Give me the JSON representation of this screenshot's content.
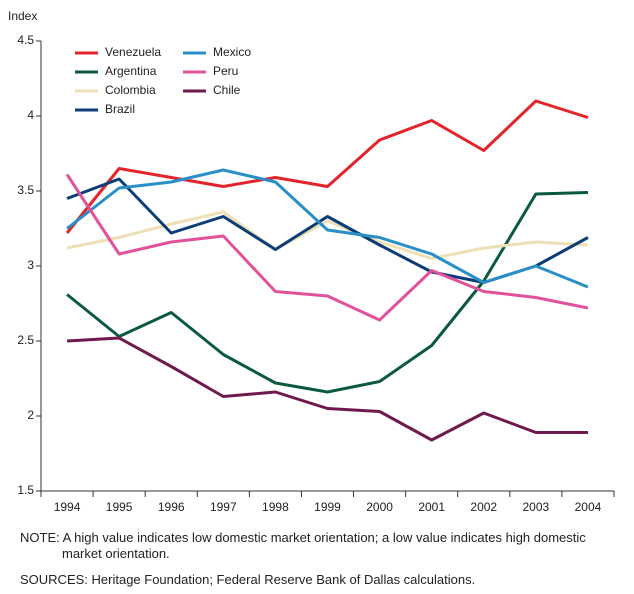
{
  "chart_data": {
    "type": "line",
    "y_label": "Index",
    "categories": [
      "1994",
      "1995",
      "1996",
      "1997",
      "1998",
      "1999",
      "2000",
      "2001",
      "2002",
      "2003",
      "2004"
    ],
    "series": [
      {
        "name": "Venezuela",
        "color": "#e3242b",
        "values": [
          3.22,
          3.65,
          3.59,
          3.53,
          3.59,
          3.53,
          3.84,
          3.97,
          3.77,
          4.1,
          3.99
        ]
      },
      {
        "name": "Argentina",
        "color": "#0b5a3c",
        "values": [
          2.81,
          2.53,
          2.69,
          2.41,
          2.22,
          2.16,
          2.23,
          2.47,
          2.9,
          3.48,
          3.49
        ]
      },
      {
        "name": "Colombia",
        "color": "#ede0b5",
        "values": [
          3.12,
          3.19,
          3.28,
          3.36,
          3.11,
          3.3,
          3.16,
          3.05,
          3.12,
          3.16,
          3.14
        ]
      },
      {
        "name": "Brazil",
        "color": "#0d3d78",
        "values": [
          3.45,
          3.58,
          3.22,
          3.33,
          3.11,
          3.33,
          3.14,
          2.96,
          2.89,
          3.0,
          3.19
        ]
      },
      {
        "name": "Mexico",
        "color": "#2a8fc6",
        "values": [
          3.25,
          3.52,
          3.56,
          3.64,
          3.56,
          3.24,
          3.19,
          3.08,
          2.89,
          3.0,
          2.86
        ]
      },
      {
        "name": "Peru",
        "color": "#e2519a",
        "values": [
          3.61,
          3.08,
          3.16,
          3.2,
          2.83,
          2.8,
          2.64,
          2.97,
          2.83,
          2.79,
          2.72
        ]
      },
      {
        "name": "Chile",
        "color": "#6e1a4e",
        "values": [
          2.5,
          2.52,
          2.33,
          2.13,
          2.16,
          2.05,
          2.03,
          1.84,
          2.02,
          1.89,
          1.89
        ]
      }
    ],
    "ylim": [
      1.5,
      4.5
    ],
    "yticks": [
      1.5,
      2,
      2.5,
      3,
      3.5,
      4,
      4.5
    ],
    "note": "NOTE: A high value indicates low domestic market orientation; a low value indicates high domestic market orientation.",
    "sources": "SOURCES: Heritage Foundation; Federal Reserve Bank of Dallas calculations."
  }
}
